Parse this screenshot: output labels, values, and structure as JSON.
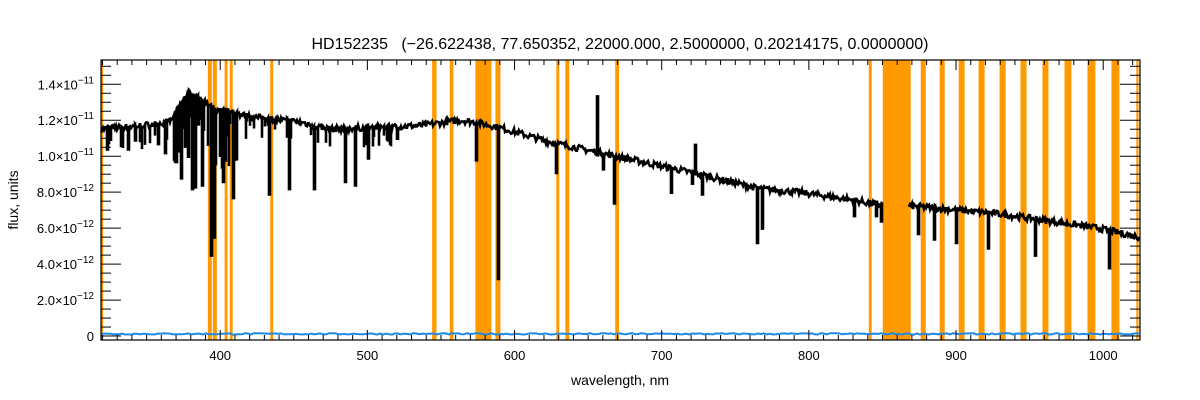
{
  "chart_data": {
    "type": "line",
    "title": "HD152235   (−26.622438, 77.650352, 22000.000, 2.5000000, 0.20214175, 0.0000000)",
    "xlabel": "wavelength, nm",
    "ylabel": "flux, units",
    "xlim": [
      319,
      1025
    ],
    "ylim_e12": [
      -0.22,
      15.35
    ],
    "y_unit_scale": 1e-12,
    "grid": false,
    "x_ticks": [
      400,
      500,
      600,
      700,
      800,
      900,
      1000
    ],
    "x_tick_labels": [
      "400",
      "500",
      "600",
      "700",
      "800",
      "900",
      "1000"
    ],
    "y_ticks_e12": [
      0,
      2,
      4,
      6,
      8,
      10,
      12,
      14
    ],
    "y_tick_labels": [
      {
        "m": "0",
        "e": ""
      },
      {
        "m": "2.0×10",
        "e": "−12"
      },
      {
        "m": "4.0×10",
        "e": "−12"
      },
      {
        "m": "6.0×10",
        "e": "−12"
      },
      {
        "m": "8.0×10",
        "e": "−12"
      },
      {
        "m": "1.0×10",
        "e": "−11"
      },
      {
        "m": "1.2×10",
        "e": "−11"
      },
      {
        "m": "1.4×10",
        "e": "−11"
      }
    ],
    "series": [
      {
        "name": "flux",
        "color": "#000000",
        "continuum_e12": [
          [
            319,
            11.5
          ],
          [
            345.5,
            11.7
          ],
          [
            365.8,
            11.9
          ],
          [
            372.6,
            12.8
          ],
          [
            378.7,
            13.6
          ],
          [
            386,
            13.2
          ],
          [
            396.3,
            12.6
          ],
          [
            420,
            12.2
          ],
          [
            454,
            11.9
          ],
          [
            474.4,
            11.5
          ],
          [
            501.5,
            11.6
          ],
          [
            535.4,
            11.7
          ],
          [
            562.6,
            12.0
          ],
          [
            572.7,
            11.9
          ],
          [
            589.7,
            11.6
          ],
          [
            623.6,
            10.8
          ],
          [
            657.5,
            10.2
          ],
          [
            691.5,
            9.6
          ],
          [
            725.4,
            9.0
          ],
          [
            766,
            8.2
          ],
          [
            793.2,
            8.0
          ],
          [
            827,
            7.6
          ],
          [
            847.5,
            7.3
          ],
          [
            874.6,
            7.2
          ],
          [
            901.8,
            7.0
          ],
          [
            929,
            6.8
          ],
          [
            962.8,
            6.4
          ],
          [
            996.8,
            6.0
          ],
          [
            1024,
            5.5
          ]
        ],
        "absorption_lines_min_e12": [
          [
            323.7,
            10.3
          ],
          [
            333.2,
            10.5
          ],
          [
            338,
            10.3
          ],
          [
            342.7,
            10.8
          ],
          [
            358.3,
            10.6
          ],
          [
            363,
            10.1
          ],
          [
            370.6,
            9.6
          ],
          [
            374,
            8.7
          ],
          [
            378.7,
            9.9
          ],
          [
            381.4,
            8.1
          ],
          [
            383.5,
            8.2
          ],
          [
            388.2,
            8.3
          ],
          [
            393.9,
            4.4
          ],
          [
            396.3,
            5.4
          ],
          [
            402.4,
            8.5
          ],
          [
            409.2,
            7.6
          ],
          [
            433.7,
            7.8
          ],
          [
            447.2,
            8.1
          ],
          [
            464.2,
            8.1
          ],
          [
            485.2,
            8.5
          ],
          [
            492,
            8.3
          ],
          [
            500.8,
            9.8
          ],
          [
            520.5,
            10.9
          ],
          [
            574.1,
            9.7
          ],
          [
            589,
            3.1
          ],
          [
            628.4,
            9.0
          ],
          [
            660.3,
            9.2
          ],
          [
            667.7,
            7.3
          ],
          [
            706.4,
            7.9
          ],
          [
            720.6,
            8.4
          ],
          [
            727.4,
            7.8
          ],
          [
            765.4,
            5.1
          ],
          [
            768.8,
            5.9
          ],
          [
            831.2,
            6.6
          ],
          [
            846.1,
            6.6
          ],
          [
            849.5,
            6.3
          ],
          [
            874.6,
            5.6
          ],
          [
            885.5,
            5.3
          ],
          [
            900.4,
            5.1
          ],
          [
            922.1,
            4.8
          ],
          [
            954,
            4.4
          ],
          [
            1004.2,
            3.7
          ]
        ],
        "emission_lines_max_e12": [
          [
            656.2,
            13.4
          ],
          [
            722.7,
            10.7
          ]
        ],
        "data_gap_nm": [
          851,
          868
        ]
      },
      {
        "name": "flux error",
        "color": "#1e88e5",
        "level_e12": 0.12
      }
    ],
    "masked_regions_nm": [
      [
        319,
        320.5
      ],
      [
        391.6,
        394.3
      ],
      [
        395,
        397.7
      ],
      [
        403,
        405
      ],
      [
        406.5,
        408.5
      ],
      [
        434,
        436
      ],
      [
        544,
        547
      ],
      [
        556,
        558.5
      ],
      [
        573.4,
        584.3
      ],
      [
        587,
        590.4
      ],
      [
        628.4,
        630.4
      ],
      [
        634.5,
        637.2
      ],
      [
        668.4,
        671
      ],
      [
        840.7,
        842.7
      ],
      [
        850.2,
        869.2
      ],
      [
        876,
        879.4
      ],
      [
        888.9,
        892.3
      ],
      [
        901.8,
        905.8
      ],
      [
        915.3,
        919.4
      ],
      [
        929.6,
        933.7
      ],
      [
        943.8,
        947.9
      ],
      [
        958.7,
        962.8
      ],
      [
        973.7,
        978.4
      ],
      [
        989.3,
        994.7
      ],
      [
        1005.6,
        1011
      ],
      [
        1022.5,
        1024
      ]
    ],
    "mask_color": "#ff9900"
  }
}
